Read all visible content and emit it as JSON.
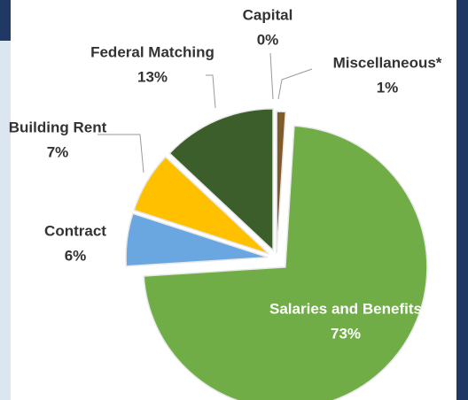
{
  "chart_data": {
    "type": "pie",
    "categories": [
      "Capital",
      "Miscellaneous*",
      "Salaries and Benefits",
      "Contract",
      "Building Rent",
      "Federal Matching"
    ],
    "values": [
      0,
      1,
      73,
      6,
      7,
      13
    ],
    "value_labels": [
      "0%",
      "1%",
      "73%",
      "6%",
      "7%",
      "13%"
    ],
    "colors": [
      "#4a6fa5",
      "#7f5a2a",
      "#70ad47",
      "#6aa6e0",
      "#ffc000",
      "#3b5e2b"
    ]
  }
}
